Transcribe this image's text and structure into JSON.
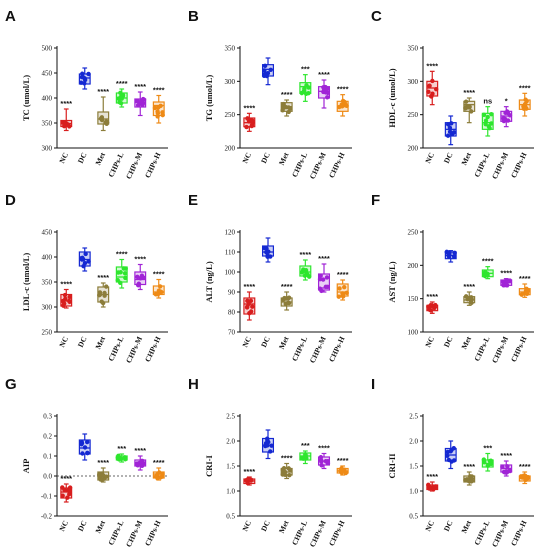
{
  "colors": {
    "NC": "#d81e1e",
    "DC": "#1428d2",
    "Met": "#8c7d3a",
    "CHPs-L": "#2ee62e",
    "CHPs-M": "#a024d6",
    "CHPs-H": "#ee8a16"
  },
  "chart_data": [
    {
      "type": "box",
      "letter": "A",
      "ylabel": "TC (umol/L)",
      "categories": [
        "NC",
        "DC",
        "Met",
        "CHPs-L",
        "CHPs-M",
        "CHPs-H"
      ],
      "ylim": [
        300,
        500
      ],
      "yticks": [
        300,
        350,
        400,
        450,
        500
      ],
      "sig": [
        "****",
        "",
        "****",
        "****",
        "****",
        "****"
      ],
      "boxes": [
        [
          335,
          343,
          349,
          355,
          378
        ],
        [
          418,
          428,
          440,
          448,
          460
        ],
        [
          335,
          348,
          358,
          372,
          402
        ],
        [
          382,
          390,
          400,
          410,
          418
        ],
        [
          365,
          382,
          391,
          398,
          412
        ],
        [
          350,
          365,
          385,
          392,
          405
        ]
      ]
    },
    {
      "type": "box",
      "letter": "B",
      "ylabel": "TG (umol/L)",
      "categories": [
        "NC",
        "DC",
        "Met",
        "CHPs-L",
        "CHPs-M",
        "CHPs-H"
      ],
      "ylim": [
        200,
        350
      ],
      "yticks": [
        200,
        250,
        300,
        350
      ],
      "sig": [
        "****",
        "",
        "****",
        "***",
        "****",
        "****"
      ],
      "boxes": [
        [
          225,
          232,
          238,
          245,
          252
        ],
        [
          295,
          308,
          318,
          325,
          335
        ],
        [
          248,
          255,
          262,
          268,
          272
        ],
        [
          270,
          282,
          292,
          298,
          310
        ],
        [
          260,
          275,
          285,
          292,
          302
        ],
        [
          248,
          255,
          262,
          270,
          280
        ]
      ]
    },
    {
      "type": "box",
      "letter": "C",
      "ylabel": "HDL-c (umol/L)",
      "categories": [
        "NC",
        "DC",
        "Met",
        "CHPs-L",
        "CHPs-M",
        "CHPs-H"
      ],
      "ylim": [
        200,
        350
      ],
      "yticks": [
        200,
        250,
        300,
        350
      ],
      "sig": [
        "****",
        "",
        "****",
        "ns",
        "*",
        "****"
      ],
      "boxes": [
        [
          265,
          278,
          290,
          300,
          315
        ],
        [
          205,
          218,
          228,
          238,
          248
        ],
        [
          238,
          255,
          265,
          270,
          275
        ],
        [
          218,
          228,
          238,
          252,
          262
        ],
        [
          232,
          240,
          248,
          255,
          262
        ],
        [
          248,
          258,
          265,
          272,
          282
        ]
      ]
    },
    {
      "type": "box",
      "letter": "D",
      "ylabel": "LDL-c (umol/L)",
      "categories": [
        "NC",
        "DC",
        "Met",
        "CHPs-L",
        "CHPs-M",
        "CHPs-H"
      ],
      "ylim": [
        250,
        450
      ],
      "yticks": [
        250,
        300,
        350,
        400,
        450
      ],
      "sig": [
        "****",
        "",
        "****",
        "****",
        "****",
        "****"
      ],
      "boxes": [
        [
          298,
          302,
          312,
          325,
          335
        ],
        [
          372,
          382,
          395,
          410,
          418
        ],
        [
          300,
          310,
          325,
          340,
          348
        ],
        [
          338,
          350,
          360,
          380,
          395
        ],
        [
          335,
          345,
          355,
          370,
          385
        ],
        [
          318,
          325,
          330,
          342,
          355
        ]
      ]
    },
    {
      "type": "box",
      "letter": "E",
      "ylabel": "ALT (ng/L)",
      "categories": [
        "NC",
        "DC",
        "Met",
        "CHPs-L",
        "CHPs-M",
        "CHPs-H"
      ],
      "ylim": [
        70,
        120
      ],
      "yticks": [
        70,
        80,
        90,
        100,
        110,
        120
      ],
      "sig": [
        "****",
        "",
        "****",
        "****",
        "****",
        "****"
      ],
      "boxes": [
        [
          76,
          79,
          84,
          87,
          90
        ],
        [
          105,
          108,
          110,
          113,
          117
        ],
        [
          81,
          83,
          85,
          87,
          90
        ],
        [
          96,
          98,
          100,
          103,
          106
        ],
        [
          90,
          91,
          92,
          99,
          104
        ],
        [
          86,
          88,
          90,
          94,
          96
        ]
      ]
    },
    {
      "type": "box",
      "letter": "F",
      "ylabel": "AST (ng/L)",
      "categories": [
        "NC",
        "DC",
        "Met",
        "CHPs-L",
        "CHPs-M",
        "CHPs-H"
      ],
      "ylim": [
        100,
        250
      ],
      "yticks": [
        100,
        150,
        200,
        250
      ],
      "sig": [
        "****",
        "",
        "****",
        "****",
        "****",
        "****"
      ],
      "boxes": [
        [
          128,
          132,
          137,
          140,
          145
        ],
        [
          205,
          210,
          215,
          220,
          222
        ],
        [
          140,
          144,
          148,
          153,
          160
        ],
        [
          180,
          183,
          188,
          193,
          198
        ],
        [
          168,
          170,
          174,
          178,
          180
        ],
        [
          152,
          156,
          160,
          165,
          172
        ]
      ]
    },
    {
      "type": "box",
      "letter": "G",
      "ylabel": "AIP",
      "categories": [
        "NC",
        "DC",
        "Met",
        "CHPs-L",
        "CHPs-M",
        "CHPs-H"
      ],
      "ylim": [
        -0.2,
        0.3
      ],
      "yticks": [
        -0.2,
        -0.1,
        0.0,
        0.1,
        0.2,
        0.3
      ],
      "ytick_labels": [
        "-0.2",
        "-0.1",
        "0.0",
        "0.1",
        "0.2",
        "0.3"
      ],
      "refline": 0,
      "sig": [
        "****",
        "",
        "****",
        "***",
        "****",
        "****"
      ],
      "boxes": [
        [
          -0.13,
          -0.11,
          -0.08,
          -0.06,
          -0.04
        ],
        [
          0.08,
          0.11,
          0.14,
          0.18,
          0.21
        ],
        [
          -0.03,
          -0.02,
          0.0,
          0.02,
          0.04
        ],
        [
          0.07,
          0.08,
          0.09,
          0.1,
          0.11
        ],
        [
          0.03,
          0.05,
          0.06,
          0.08,
          0.1
        ],
        [
          -0.02,
          -0.01,
          0.01,
          0.02,
          0.04
        ]
      ]
    },
    {
      "type": "box",
      "letter": "H",
      "ylabel": "CRI-I",
      "categories": [
        "NC",
        "DC",
        "Met",
        "CHPs-L",
        "CHPs-M",
        "CHPs-H"
      ],
      "ylim": [
        0.5,
        2.5
      ],
      "yticks": [
        0.5,
        1.0,
        1.5,
        2.0,
        2.5
      ],
      "ytick_labels": [
        "0.5",
        "1.0",
        "1.5",
        "2.0",
        "2.5"
      ],
      "sig": [
        "****",
        "",
        "****",
        "***",
        "****",
        "****"
      ],
      "boxes": [
        [
          1.12,
          1.15,
          1.2,
          1.24,
          1.28
        ],
        [
          1.65,
          1.78,
          1.92,
          2.05,
          2.22
        ],
        [
          1.25,
          1.32,
          1.38,
          1.45,
          1.55
        ],
        [
          1.55,
          1.62,
          1.7,
          1.76,
          1.8
        ],
        [
          1.45,
          1.52,
          1.6,
          1.68,
          1.75
        ],
        [
          1.32,
          1.36,
          1.4,
          1.45,
          1.5
        ]
      ]
    },
    {
      "type": "box",
      "letter": "I",
      "ylabel": "CRI-II",
      "categories": [
        "NC",
        "DC",
        "Met",
        "CHPs-L",
        "CHPs-M",
        "CHPs-H"
      ],
      "ylim": [
        0.5,
        2.5
      ],
      "yticks": [
        0.5,
        1.0,
        1.5,
        2.0,
        2.5
      ],
      "ytick_labels": [
        "0.5",
        "1.0",
        "1.5",
        "2.0",
        "2.5"
      ],
      "sig": [
        "****",
        "",
        "****",
        "***",
        "****",
        "****"
      ],
      "boxes": [
        [
          1.0,
          1.03,
          1.08,
          1.12,
          1.18
        ],
        [
          1.45,
          1.6,
          1.72,
          1.85,
          2.0
        ],
        [
          1.12,
          1.18,
          1.25,
          1.3,
          1.38
        ],
        [
          1.4,
          1.48,
          1.55,
          1.62,
          1.75
        ],
        [
          1.3,
          1.38,
          1.45,
          1.52,
          1.6
        ],
        [
          1.15,
          1.2,
          1.25,
          1.3,
          1.38
        ]
      ]
    }
  ]
}
